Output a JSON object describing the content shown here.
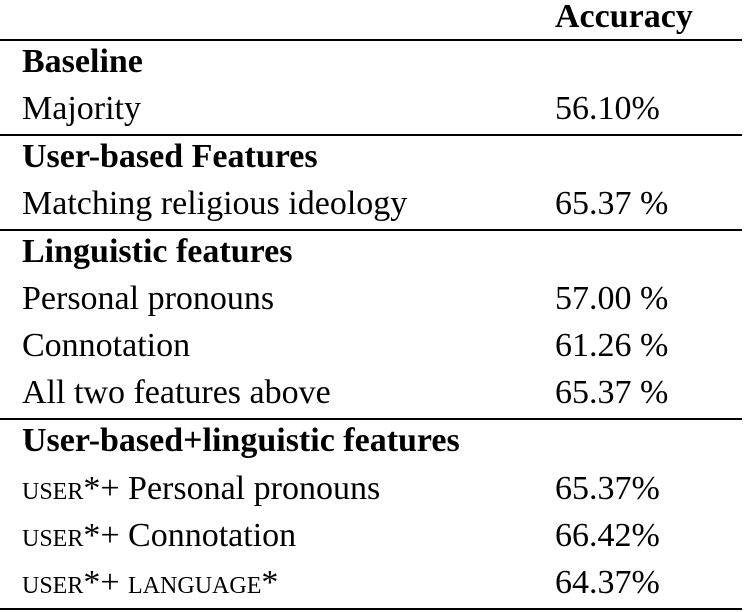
{
  "header": {
    "accuracy_label": "Accuracy"
  },
  "sections": [
    {
      "title": "Baseline",
      "rows": [
        {
          "label": "Majority",
          "value": "56.10%"
        }
      ]
    },
    {
      "title": "User-based Features",
      "rows": [
        {
          "label": "Matching religious ideology",
          "value": "65.37 %"
        }
      ]
    },
    {
      "title": "Linguistic features",
      "rows": [
        {
          "label": "Personal pronouns",
          "value": "57.00 %"
        },
        {
          "label": "Connotation",
          "value": "61.26 %"
        },
        {
          "label": "All two features above",
          "value": "65.37 %"
        }
      ]
    },
    {
      "title": "User-based+linguistic features",
      "rows": [
        {
          "prefix": "user",
          "suffix": "*+ Personal pronouns",
          "value": "65.37%"
        },
        {
          "prefix": "user",
          "suffix": "*+ Connotation",
          "value": "66.42%"
        },
        {
          "prefix": "user",
          "suffix": "*+ ",
          "prefix2": "language",
          "suffix2": "*",
          "value": "64.37%"
        }
      ]
    }
  ]
}
